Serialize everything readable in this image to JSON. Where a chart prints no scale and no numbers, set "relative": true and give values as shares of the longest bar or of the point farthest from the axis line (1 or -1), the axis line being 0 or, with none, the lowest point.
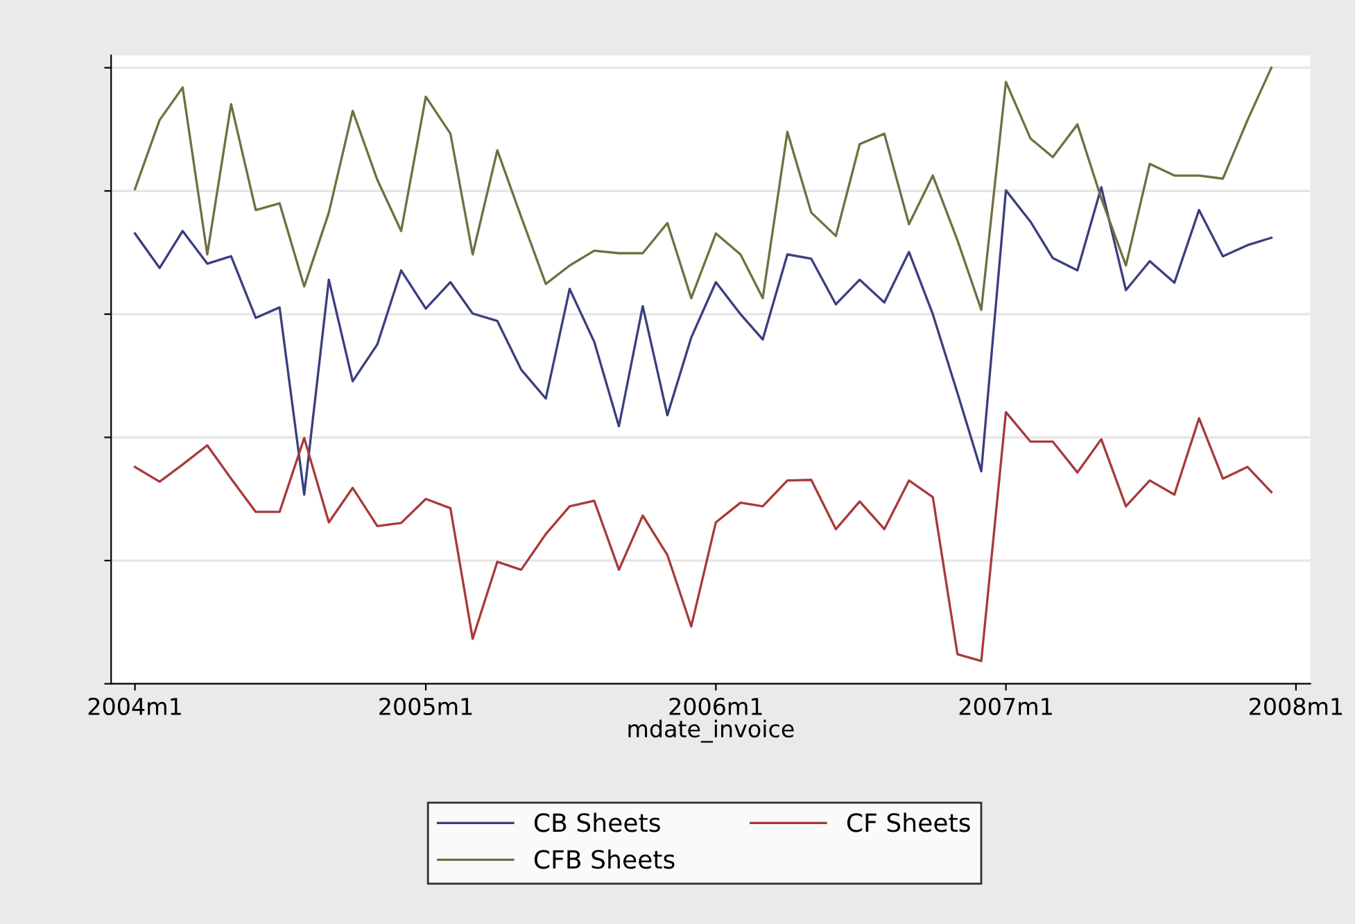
{
  "chart_data": {
    "type": "line",
    "relative": true,
    "xlabel": "mdate_invoice",
    "x": [
      "2004-01",
      "2004-02",
      "2004-03",
      "2004-04",
      "2004-05",
      "2004-06",
      "2004-07",
      "2004-08",
      "2004-09",
      "2004-10",
      "2004-11",
      "2004-12",
      "2005-01",
      "2005-02",
      "2005-03",
      "2005-04",
      "2005-05",
      "2005-06",
      "2005-07",
      "2005-08",
      "2005-09",
      "2005-10",
      "2005-11",
      "2005-12",
      "2006-01",
      "2006-02",
      "2006-03",
      "2006-04",
      "2006-05",
      "2006-06",
      "2006-07",
      "2006-08",
      "2006-09",
      "2006-10",
      "2006-11",
      "2006-12",
      "2007-01",
      "2007-02",
      "2007-03",
      "2007-04",
      "2007-05",
      "2007-06",
      "2007-07",
      "2007-08",
      "2007-09",
      "2007-10",
      "2007-11",
      "2007-12"
    ],
    "xlim": [
      "2003-12-02",
      "2008-01-19"
    ],
    "xticks": [
      {
        "value": "2004-01",
        "label": "2004m1"
      },
      {
        "value": "2005-01",
        "label": "2005m1"
      },
      {
        "value": "2006-01",
        "label": "2006m1"
      },
      {
        "value": "2007-01",
        "label": "2007m1"
      },
      {
        "value": "2008-01",
        "label": "2008m1"
      }
    ],
    "series": [
      {
        "name": "CB Sheets",
        "color": "#3a3f7f",
        "values": [
          0.731,
          0.675,
          0.735,
          0.682,
          0.694,
          0.594,
          0.611,
          0.307,
          0.656,
          0.491,
          0.551,
          0.671,
          0.609,
          0.652,
          0.601,
          0.589,
          0.51,
          0.463,
          0.641,
          0.555,
          0.418,
          0.613,
          0.436,
          0.562,
          0.652,
          0.6,
          0.559,
          0.697,
          0.69,
          0.616,
          0.656,
          0.619,
          0.701,
          0.6,
          0.472,
          0.345,
          0.801,
          0.75,
          0.691,
          0.671,
          0.806,
          0.639,
          0.686,
          0.651,
          0.769,
          0.694,
          0.712,
          0.724
        ]
      },
      {
        "name": "CF Sheets",
        "color": "#a83a3a",
        "values": [
          0.352,
          0.328,
          0.356,
          0.387,
          0.333,
          0.279,
          0.279,
          0.399,
          0.262,
          0.318,
          0.256,
          0.261,
          0.3,
          0.285,
          0.073,
          0.198,
          0.185,
          0.243,
          0.288,
          0.297,
          0.185,
          0.273,
          0.209,
          0.093,
          0.262,
          0.294,
          0.288,
          0.33,
          0.331,
          0.251,
          0.296,
          0.251,
          0.33,
          0.303,
          0.048,
          0.037,
          0.441,
          0.393,
          0.393,
          0.343,
          0.397,
          0.288,
          0.33,
          0.307,
          0.431,
          0.333,
          0.352,
          0.311
        ]
      },
      {
        "name": "CFB Sheets",
        "color": "#6f7040",
        "values": [
          0.803,
          0.915,
          0.968,
          0.697,
          0.941,
          0.769,
          0.78,
          0.645,
          0.765,
          0.93,
          0.818,
          0.735,
          0.953,
          0.893,
          0.697,
          0.866,
          0.758,
          0.649,
          0.679,
          0.703,
          0.699,
          0.699,
          0.748,
          0.626,
          0.731,
          0.697,
          0.626,
          0.896,
          0.765,
          0.727,
          0.876,
          0.893,
          0.746,
          0.825,
          0.72,
          0.607,
          0.977,
          0.885,
          0.855,
          0.908,
          0.788,
          0.679,
          0.844,
          0.825,
          0.825,
          0.82,
          0.915,
          1.0
        ]
      }
    ],
    "grid": "y",
    "legend": "bottom",
    "tick_labels": "x",
    "marker": "none",
    "line_style": "solid"
  }
}
